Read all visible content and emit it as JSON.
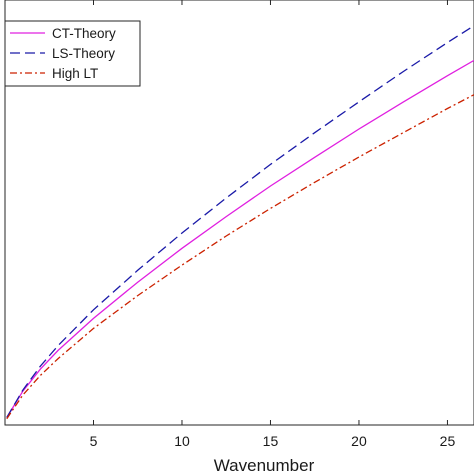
{
  "chart_data": {
    "type": "line",
    "title": "",
    "xlabel": "Wavenumber",
    "ylabel": "",
    "xlim": [
      0,
      26.5
    ],
    "ylim": [
      0,
      1.14
    ],
    "x_ticks": [
      5,
      10,
      15,
      20,
      25
    ],
    "x_tick_labels": [
      "5",
      "10",
      "15",
      "20",
      "25"
    ],
    "grid": false,
    "legend_position": "top-left",
    "series": [
      {
        "name": "CT-Theory",
        "color": "#e020e0",
        "line_style": "solid",
        "x": [
          0.1,
          1,
          2,
          3,
          5,
          7.5,
          10,
          12.5,
          15,
          17.5,
          20,
          22.5,
          25,
          26.5
        ],
        "y": [
          0.02,
          0.09,
          0.15,
          0.2,
          0.286,
          0.383,
          0.474,
          0.559,
          0.641,
          0.718,
          0.794,
          0.866,
          0.937,
          0.978
        ]
      },
      {
        "name": "LS-Theory",
        "color": "#1a1aa8",
        "line_style": "dashed",
        "x": [
          0.1,
          1,
          2,
          3,
          5,
          7.5,
          10,
          12.5,
          15,
          17.5,
          20,
          22.5,
          25,
          26.5
        ],
        "y": [
          0.02,
          0.093,
          0.158,
          0.213,
          0.309,
          0.415,
          0.515,
          0.609,
          0.699,
          0.784,
          0.867,
          0.948,
          1.026,
          1.071
        ]
      },
      {
        "name": "High LT",
        "color": "#cc2200",
        "line_style": "dash-dot",
        "x": [
          0.1,
          1,
          2,
          3,
          5,
          7.5,
          10,
          12.5,
          15,
          17.5,
          20,
          22.5,
          25,
          26.5
        ],
        "y": [
          0.017,
          0.08,
          0.133,
          0.178,
          0.259,
          0.347,
          0.429,
          0.507,
          0.581,
          0.651,
          0.719,
          0.784,
          0.849,
          0.886
        ]
      }
    ]
  }
}
